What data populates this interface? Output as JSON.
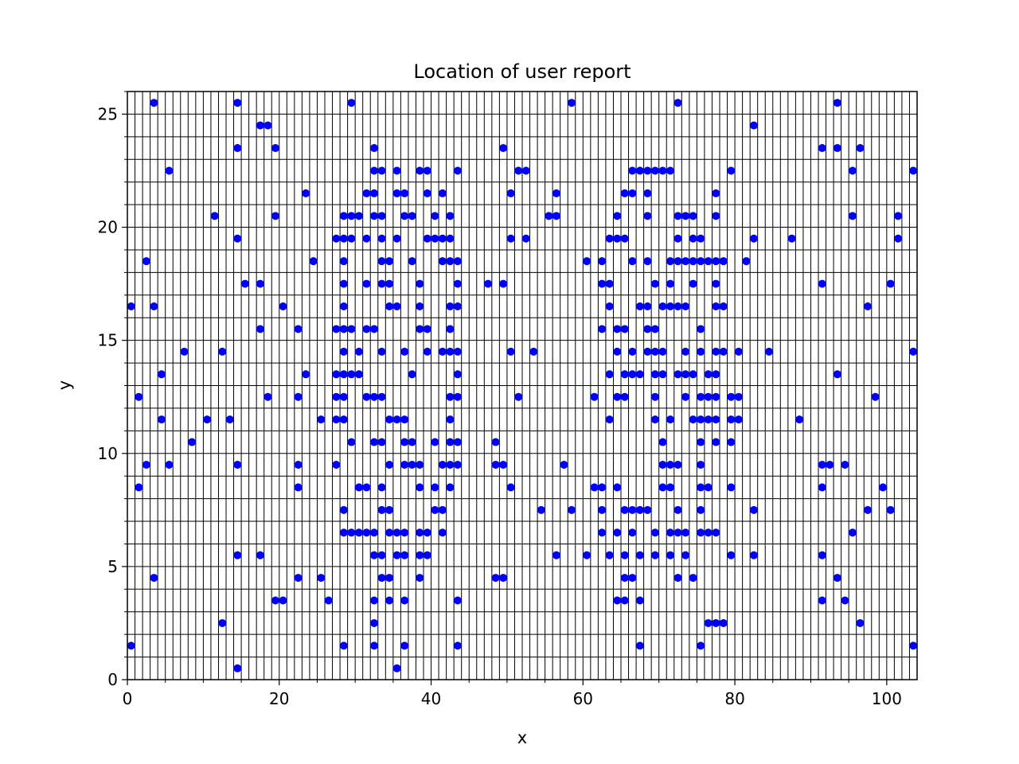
{
  "chart_data": {
    "type": "scatter",
    "title": "Location of user report",
    "xlabel": "x",
    "ylabel": "y",
    "xlim": [
      0,
      104
    ],
    "ylim": [
      0,
      26
    ],
    "x_ticks": [
      0,
      20,
      40,
      60,
      80,
      100
    ],
    "y_ticks": [
      0,
      5,
      10,
      15,
      20,
      25
    ],
    "x_tick_labels": [
      "0",
      "20",
      "40",
      "60",
      "80",
      "100"
    ],
    "y_tick_labels": [
      "0",
      "5",
      "10",
      "15",
      "20",
      "25"
    ],
    "grid": true,
    "grid_step_x": 1,
    "grid_step_y": 1,
    "marker_color": "#0000ff",
    "grid_color": "#000000",
    "points": [
      [
        0.5,
        16.5
      ],
      [
        0.5,
        1.5
      ],
      [
        1.5,
        12.5
      ],
      [
        1.5,
        8.5
      ],
      [
        2.5,
        18.5
      ],
      [
        2.5,
        9.5
      ],
      [
        3.5,
        25.5
      ],
      [
        3.5,
        16.5
      ],
      [
        3.5,
        4.5
      ],
      [
        4.5,
        13.5
      ],
      [
        4.5,
        11.5
      ],
      [
        5.5,
        22.5
      ],
      [
        5.5,
        9.5
      ],
      [
        7.5,
        14.5
      ],
      [
        8.5,
        10.5
      ],
      [
        10.5,
        11.5
      ],
      [
        11.5,
        20.5
      ],
      [
        12.5,
        14.5
      ],
      [
        12.5,
        2.5
      ],
      [
        13.5,
        11.5
      ],
      [
        14.5,
        25.5
      ],
      [
        14.5,
        23.5
      ],
      [
        14.5,
        19.5
      ],
      [
        14.5,
        9.5
      ],
      [
        14.5,
        5.5
      ],
      [
        14.5,
        0.5
      ],
      [
        15.5,
        17.5
      ],
      [
        17.5,
        24.5
      ],
      [
        17.5,
        17.5
      ],
      [
        17.5,
        15.5
      ],
      [
        17.5,
        5.5
      ],
      [
        18.5,
        24.5
      ],
      [
        18.5,
        12.5
      ],
      [
        19.5,
        23.5
      ],
      [
        19.5,
        20.5
      ],
      [
        19.5,
        3.5
      ],
      [
        20.5,
        16.5
      ],
      [
        20.5,
        3.5
      ],
      [
        22.5,
        15.5
      ],
      [
        22.5,
        12.5
      ],
      [
        22.5,
        9.5
      ],
      [
        22.5,
        8.5
      ],
      [
        22.5,
        4.5
      ],
      [
        23.5,
        21.5
      ],
      [
        23.5,
        13.5
      ],
      [
        24.5,
        18.5
      ],
      [
        25.5,
        11.5
      ],
      [
        25.5,
        4.5
      ],
      [
        26.5,
        3.5
      ],
      [
        27.5,
        19.5
      ],
      [
        27.5,
        15.5
      ],
      [
        27.5,
        13.5
      ],
      [
        27.5,
        12.5
      ],
      [
        27.5,
        11.5
      ],
      [
        27.5,
        9.5
      ],
      [
        28.5,
        20.5
      ],
      [
        28.5,
        19.5
      ],
      [
        28.5,
        18.5
      ],
      [
        28.5,
        17.5
      ],
      [
        28.5,
        16.5
      ],
      [
        28.5,
        15.5
      ],
      [
        28.5,
        14.5
      ],
      [
        28.5,
        13.5
      ],
      [
        28.5,
        12.5
      ],
      [
        28.5,
        11.5
      ],
      [
        28.5,
        7.5
      ],
      [
        28.5,
        6.5
      ],
      [
        28.5,
        1.5
      ],
      [
        29.5,
        25.5
      ],
      [
        29.5,
        20.5
      ],
      [
        29.5,
        19.5
      ],
      [
        29.5,
        15.5
      ],
      [
        29.5,
        13.5
      ],
      [
        29.5,
        10.5
      ],
      [
        29.5,
        6.5
      ],
      [
        30.5,
        20.5
      ],
      [
        30.5,
        14.5
      ],
      [
        30.5,
        13.5
      ],
      [
        30.5,
        8.5
      ],
      [
        30.5,
        6.5
      ],
      [
        31.5,
        21.5
      ],
      [
        31.5,
        19.5
      ],
      [
        31.5,
        17.5
      ],
      [
        31.5,
        15.5
      ],
      [
        31.5,
        12.5
      ],
      [
        31.5,
        8.5
      ],
      [
        31.5,
        6.5
      ],
      [
        32.5,
        23.5
      ],
      [
        32.5,
        22.5
      ],
      [
        32.5,
        21.5
      ],
      [
        32.5,
        20.5
      ],
      [
        32.5,
        15.5
      ],
      [
        32.5,
        12.5
      ],
      [
        32.5,
        10.5
      ],
      [
        32.5,
        6.5
      ],
      [
        32.5,
        5.5
      ],
      [
        32.5,
        3.5
      ],
      [
        32.5,
        2.5
      ],
      [
        32.5,
        1.5
      ],
      [
        33.5,
        22.5
      ],
      [
        33.5,
        20.5
      ],
      [
        33.5,
        19.5
      ],
      [
        33.5,
        18.5
      ],
      [
        33.5,
        17.5
      ],
      [
        33.5,
        14.5
      ],
      [
        33.5,
        12.5
      ],
      [
        33.5,
        10.5
      ],
      [
        33.5,
        8.5
      ],
      [
        33.5,
        7.5
      ],
      [
        33.5,
        5.5
      ],
      [
        33.5,
        4.5
      ],
      [
        34.5,
        18.5
      ],
      [
        34.5,
        17.5
      ],
      [
        34.5,
        16.5
      ],
      [
        34.5,
        11.5
      ],
      [
        34.5,
        9.5
      ],
      [
        34.5,
        7.5
      ],
      [
        34.5,
        6.5
      ],
      [
        34.5,
        4.5
      ],
      [
        34.5,
        3.5
      ],
      [
        35.5,
        22.5
      ],
      [
        35.5,
        21.5
      ],
      [
        35.5,
        19.5
      ],
      [
        35.5,
        16.5
      ],
      [
        35.5,
        11.5
      ],
      [
        35.5,
        6.5
      ],
      [
        35.5,
        5.5
      ],
      [
        35.5,
        0.5
      ],
      [
        36.5,
        21.5
      ],
      [
        36.5,
        20.5
      ],
      [
        36.5,
        14.5
      ],
      [
        36.5,
        11.5
      ],
      [
        36.5,
        10.5
      ],
      [
        36.5,
        9.5
      ],
      [
        36.5,
        6.5
      ],
      [
        36.5,
        5.5
      ],
      [
        36.5,
        3.5
      ],
      [
        36.5,
        1.5
      ],
      [
        37.5,
        20.5
      ],
      [
        37.5,
        18.5
      ],
      [
        37.5,
        13.5
      ],
      [
        37.5,
        10.5
      ],
      [
        37.5,
        9.5
      ],
      [
        38.5,
        22.5
      ],
      [
        38.5,
        17.5
      ],
      [
        38.5,
        16.5
      ],
      [
        38.5,
        15.5
      ],
      [
        38.5,
        9.5
      ],
      [
        38.5,
        8.5
      ],
      [
        38.5,
        6.5
      ],
      [
        38.5,
        5.5
      ],
      [
        38.5,
        4.5
      ],
      [
        39.5,
        22.5
      ],
      [
        39.5,
        21.5
      ],
      [
        39.5,
        19.5
      ],
      [
        39.5,
        15.5
      ],
      [
        39.5,
        14.5
      ],
      [
        39.5,
        6.5
      ],
      [
        39.5,
        5.5
      ],
      [
        40.5,
        20.5
      ],
      [
        40.5,
        19.5
      ],
      [
        40.5,
        10.5
      ],
      [
        40.5,
        8.5
      ],
      [
        40.5,
        7.5
      ],
      [
        41.5,
        21.5
      ],
      [
        41.5,
        19.5
      ],
      [
        41.5,
        18.5
      ],
      [
        41.5,
        14.5
      ],
      [
        41.5,
        9.5
      ],
      [
        41.5,
        7.5
      ],
      [
        41.5,
        6.5
      ],
      [
        42.5,
        20.5
      ],
      [
        42.5,
        19.5
      ],
      [
        42.5,
        18.5
      ],
      [
        42.5,
        16.5
      ],
      [
        42.5,
        15.5
      ],
      [
        42.5,
        14.5
      ],
      [
        42.5,
        12.5
      ],
      [
        42.5,
        11.5
      ],
      [
        42.5,
        10.5
      ],
      [
        42.5,
        9.5
      ],
      [
        42.5,
        8.5
      ],
      [
        43.5,
        22.5
      ],
      [
        43.5,
        18.5
      ],
      [
        43.5,
        17.5
      ],
      [
        43.5,
        16.5
      ],
      [
        43.5,
        14.5
      ],
      [
        43.5,
        13.5
      ],
      [
        43.5,
        12.5
      ],
      [
        43.5,
        10.5
      ],
      [
        43.5,
        9.5
      ],
      [
        43.5,
        3.5
      ],
      [
        43.5,
        1.5
      ],
      [
        47.5,
        17.5
      ],
      [
        48.5,
        10.5
      ],
      [
        48.5,
        9.5
      ],
      [
        48.5,
        4.5
      ],
      [
        49.5,
        23.5
      ],
      [
        49.5,
        17.5
      ],
      [
        49.5,
        9.5
      ],
      [
        49.5,
        4.5
      ],
      [
        50.5,
        21.5
      ],
      [
        50.5,
        19.5
      ],
      [
        50.5,
        14.5
      ],
      [
        50.5,
        8.5
      ],
      [
        51.5,
        22.5
      ],
      [
        51.5,
        12.5
      ],
      [
        52.5,
        22.5
      ],
      [
        52.5,
        19.5
      ],
      [
        53.5,
        14.5
      ],
      [
        54.5,
        7.5
      ],
      [
        55.5,
        20.5
      ],
      [
        56.5,
        21.5
      ],
      [
        56.5,
        20.5
      ],
      [
        56.5,
        5.5
      ],
      [
        57.5,
        9.5
      ],
      [
        58.5,
        25.5
      ],
      [
        58.5,
        7.5
      ],
      [
        60.5,
        18.5
      ],
      [
        60.5,
        5.5
      ],
      [
        61.5,
        12.5
      ],
      [
        61.5,
        8.5
      ],
      [
        62.5,
        18.5
      ],
      [
        62.5,
        17.5
      ],
      [
        62.5,
        15.5
      ],
      [
        62.5,
        8.5
      ],
      [
        62.5,
        7.5
      ],
      [
        62.5,
        6.5
      ],
      [
        63.5,
        19.5
      ],
      [
        63.5,
        17.5
      ],
      [
        63.5,
        16.5
      ],
      [
        63.5,
        13.5
      ],
      [
        63.5,
        11.5
      ],
      [
        63.5,
        5.5
      ],
      [
        64.5,
        20.5
      ],
      [
        64.5,
        19.5
      ],
      [
        64.5,
        15.5
      ],
      [
        64.5,
        14.5
      ],
      [
        64.5,
        12.5
      ],
      [
        64.5,
        8.5
      ],
      [
        64.5,
        6.5
      ],
      [
        64.5,
        3.5
      ],
      [
        65.5,
        21.5
      ],
      [
        65.5,
        19.5
      ],
      [
        65.5,
        15.5
      ],
      [
        65.5,
        13.5
      ],
      [
        65.5,
        12.5
      ],
      [
        65.5,
        7.5
      ],
      [
        65.5,
        5.5
      ],
      [
        65.5,
        4.5
      ],
      [
        65.5,
        3.5
      ],
      [
        66.5,
        22.5
      ],
      [
        66.5,
        21.5
      ],
      [
        66.5,
        18.5
      ],
      [
        66.5,
        14.5
      ],
      [
        66.5,
        13.5
      ],
      [
        66.5,
        7.5
      ],
      [
        66.5,
        6.5
      ],
      [
        66.5,
        4.5
      ],
      [
        67.5,
        22.5
      ],
      [
        67.5,
        16.5
      ],
      [
        67.5,
        13.5
      ],
      [
        67.5,
        7.5
      ],
      [
        67.5,
        5.5
      ],
      [
        67.5,
        3.5
      ],
      [
        67.5,
        1.5
      ],
      [
        68.5,
        22.5
      ],
      [
        68.5,
        21.5
      ],
      [
        68.5,
        20.5
      ],
      [
        68.5,
        18.5
      ],
      [
        68.5,
        16.5
      ],
      [
        68.5,
        15.5
      ],
      [
        68.5,
        14.5
      ],
      [
        68.5,
        7.5
      ],
      [
        69.5,
        22.5
      ],
      [
        69.5,
        17.5
      ],
      [
        69.5,
        15.5
      ],
      [
        69.5,
        14.5
      ],
      [
        69.5,
        13.5
      ],
      [
        69.5,
        12.5
      ],
      [
        69.5,
        11.5
      ],
      [
        69.5,
        6.5
      ],
      [
        69.5,
        5.5
      ],
      [
        70.5,
        22.5
      ],
      [
        70.5,
        16.5
      ],
      [
        70.5,
        14.5
      ],
      [
        70.5,
        13.5
      ],
      [
        70.5,
        10.5
      ],
      [
        70.5,
        9.5
      ],
      [
        70.5,
        8.5
      ],
      [
        71.5,
        22.5
      ],
      [
        71.5,
        18.5
      ],
      [
        71.5,
        17.5
      ],
      [
        71.5,
        16.5
      ],
      [
        71.5,
        11.5
      ],
      [
        71.5,
        9.5
      ],
      [
        71.5,
        8.5
      ],
      [
        71.5,
        6.5
      ],
      [
        71.5,
        5.5
      ],
      [
        72.5,
        25.5
      ],
      [
        72.5,
        20.5
      ],
      [
        72.5,
        19.5
      ],
      [
        72.5,
        18.5
      ],
      [
        72.5,
        16.5
      ],
      [
        72.5,
        13.5
      ],
      [
        72.5,
        9.5
      ],
      [
        72.5,
        7.5
      ],
      [
        72.5,
        6.5
      ],
      [
        72.5,
        4.5
      ],
      [
        73.5,
        20.5
      ],
      [
        73.5,
        18.5
      ],
      [
        73.5,
        16.5
      ],
      [
        73.5,
        14.5
      ],
      [
        73.5,
        13.5
      ],
      [
        73.5,
        12.5
      ],
      [
        73.5,
        6.5
      ],
      [
        73.5,
        5.5
      ],
      [
        74.5,
        20.5
      ],
      [
        74.5,
        19.5
      ],
      [
        74.5,
        18.5
      ],
      [
        74.5,
        17.5
      ],
      [
        74.5,
        13.5
      ],
      [
        74.5,
        11.5
      ],
      [
        74.5,
        4.5
      ],
      [
        75.5,
        19.5
      ],
      [
        75.5,
        18.5
      ],
      [
        75.5,
        15.5
      ],
      [
        75.5,
        14.5
      ],
      [
        75.5,
        12.5
      ],
      [
        75.5,
        11.5
      ],
      [
        75.5,
        10.5
      ],
      [
        75.5,
        9.5
      ],
      [
        75.5,
        8.5
      ],
      [
        75.5,
        7.5
      ],
      [
        75.5,
        6.5
      ],
      [
        75.5,
        1.5
      ],
      [
        76.5,
        18.5
      ],
      [
        76.5,
        13.5
      ],
      [
        76.5,
        12.5
      ],
      [
        76.5,
        11.5
      ],
      [
        76.5,
        8.5
      ],
      [
        76.5,
        6.5
      ],
      [
        76.5,
        2.5
      ],
      [
        77.5,
        21.5
      ],
      [
        77.5,
        20.5
      ],
      [
        77.5,
        18.5
      ],
      [
        77.5,
        17.5
      ],
      [
        77.5,
        16.5
      ],
      [
        77.5,
        14.5
      ],
      [
        77.5,
        13.5
      ],
      [
        77.5,
        12.5
      ],
      [
        77.5,
        11.5
      ],
      [
        77.5,
        10.5
      ],
      [
        77.5,
        6.5
      ],
      [
        77.5,
        2.5
      ],
      [
        78.5,
        18.5
      ],
      [
        78.5,
        16.5
      ],
      [
        78.5,
        14.5
      ],
      [
        78.5,
        2.5
      ],
      [
        79.5,
        22.5
      ],
      [
        79.5,
        12.5
      ],
      [
        79.5,
        11.5
      ],
      [
        79.5,
        10.5
      ],
      [
        79.5,
        8.5
      ],
      [
        79.5,
        5.5
      ],
      [
        80.5,
        14.5
      ],
      [
        80.5,
        12.5
      ],
      [
        80.5,
        11.5
      ],
      [
        81.5,
        18.5
      ],
      [
        82.5,
        24.5
      ],
      [
        82.5,
        19.5
      ],
      [
        82.5,
        7.5
      ],
      [
        82.5,
        5.5
      ],
      [
        84.5,
        14.5
      ],
      [
        87.5,
        19.5
      ],
      [
        88.5,
        11.5
      ],
      [
        91.5,
        23.5
      ],
      [
        91.5,
        17.5
      ],
      [
        91.5,
        9.5
      ],
      [
        91.5,
        8.5
      ],
      [
        91.5,
        5.5
      ],
      [
        91.5,
        3.5
      ],
      [
        92.5,
        9.5
      ],
      [
        93.5,
        25.5
      ],
      [
        93.5,
        23.5
      ],
      [
        93.5,
        13.5
      ],
      [
        93.5,
        4.5
      ],
      [
        94.5,
        9.5
      ],
      [
        94.5,
        3.5
      ],
      [
        95.5,
        22.5
      ],
      [
        95.5,
        20.5
      ],
      [
        95.5,
        6.5
      ],
      [
        96.5,
        23.5
      ],
      [
        96.5,
        2.5
      ],
      [
        97.5,
        16.5
      ],
      [
        97.5,
        7.5
      ],
      [
        98.5,
        12.5
      ],
      [
        99.5,
        8.5
      ],
      [
        100.5,
        17.5
      ],
      [
        100.5,
        7.5
      ],
      [
        101.5,
        20.5
      ],
      [
        101.5,
        19.5
      ],
      [
        103.5,
        22.5
      ],
      [
        103.5,
        14.5
      ],
      [
        103.5,
        1.5
      ]
    ]
  }
}
